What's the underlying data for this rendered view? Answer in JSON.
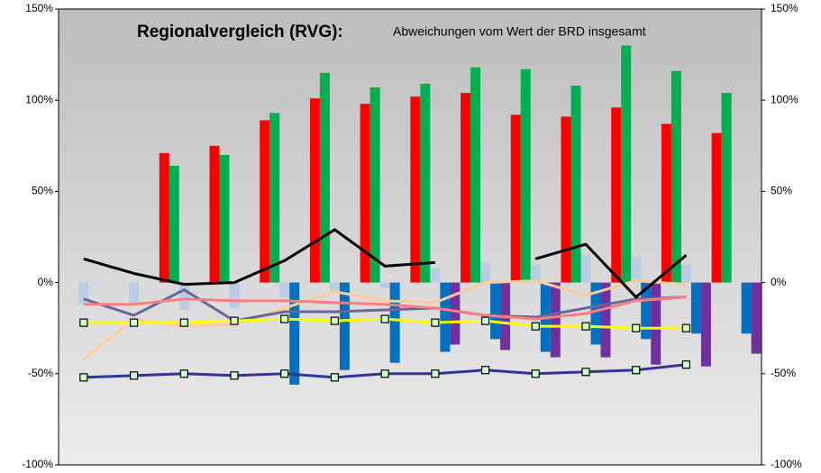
{
  "chart_data": {
    "type": "bar",
    "title": "Regionalvergleich (RVG):",
    "subtitle": "Abweichungen  vom Wert der BRD insgesamt",
    "categories": [
      null,
      null,
      null,
      null,
      null,
      null,
      null,
      null,
      null,
      null,
      null,
      null,
      null,
      null
    ],
    "ylim": [
      -100,
      150
    ],
    "yticks": [
      {
        "value": -100,
        "label": "-100%"
      },
      {
        "value": -50,
        "label": "-50%"
      },
      {
        "value": 0,
        "label": "0%"
      },
      {
        "value": 50,
        "label": "50%"
      },
      {
        "value": 100,
        "label": "100%"
      },
      {
        "value": 150,
        "label": "150%"
      }
    ],
    "y2lim": [
      -100,
      150
    ],
    "y2ticks": [
      {
        "value": -100,
        "label": "-100%"
      },
      {
        "value": -50,
        "label": "-50%"
      },
      {
        "value": 0,
        "label": "0%"
      },
      {
        "value": 50,
        "label": "50%"
      },
      {
        "value": 100,
        "label": "100%"
      },
      {
        "value": 150,
        "label": "150%"
      }
    ],
    "grid": false,
    "series": [
      {
        "type": "bar",
        "color": "#ff0000",
        "values": [
          null,
          null,
          71,
          75,
          89,
          101,
          98,
          102,
          104,
          92,
          91,
          96,
          87,
          82
        ]
      },
      {
        "type": "bar",
        "color": "#00b050",
        "values": [
          null,
          null,
          64,
          70,
          93,
          115,
          107,
          109,
          118,
          117,
          108,
          130,
          116,
          104
        ]
      },
      {
        "type": "bar",
        "color": "#b8cce4",
        "values": [
          -12,
          -12,
          -15,
          -14,
          -8,
          -5,
          -3,
          8,
          11,
          10,
          15,
          14,
          10,
          null
        ]
      },
      {
        "type": "bar",
        "color": "#0070c0",
        "values": [
          null,
          null,
          null,
          null,
          -56,
          -48,
          -44,
          -38,
          -31,
          -38,
          -34,
          -31,
          -28,
          -28
        ]
      },
      {
        "type": "bar",
        "color": "#7030a0",
        "values": [
          null,
          null,
          null,
          null,
          null,
          null,
          null,
          -34,
          -37,
          -41,
          -41,
          -45,
          -46,
          -39
        ]
      },
      {
        "type": "line",
        "color": "#ffcc99",
        "values": [
          -42,
          -20,
          -24,
          -23,
          -14,
          -5,
          -10,
          -11,
          0,
          1,
          -7,
          1,
          -1,
          null
        ]
      },
      {
        "type": "line",
        "color": "#666699",
        "values": [
          -9,
          -18,
          -4,
          -21,
          -16,
          -16,
          -15,
          -14,
          -18,
          -19,
          -14,
          -9,
          -8,
          null
        ]
      },
      {
        "type": "line",
        "color": "#ff7c80",
        "values": [
          -12,
          -12,
          -9,
          -10,
          -10,
          -11,
          -12,
          -14,
          -18,
          -20,
          -17,
          -10,
          -8,
          null
        ]
      },
      {
        "type": "line",
        "color": "#000000",
        "values": [
          13,
          5,
          -1,
          0,
          12,
          29,
          9,
          11,
          null,
          13,
          21,
          -8,
          15,
          null
        ]
      },
      {
        "type": "line",
        "color": "#ffff00",
        "marker": true,
        "values": [
          -22,
          -22,
          -22,
          -21,
          -20,
          -21,
          -20,
          -22,
          -21,
          -24,
          -24,
          -25,
          -25,
          null
        ]
      },
      {
        "type": "line",
        "color": "#333399",
        "marker": true,
        "values": [
          -52,
          -51,
          -50,
          -51,
          -50,
          -52,
          -50,
          -50,
          -48,
          -50,
          -49,
          -48,
          -45,
          null
        ]
      }
    ]
  }
}
